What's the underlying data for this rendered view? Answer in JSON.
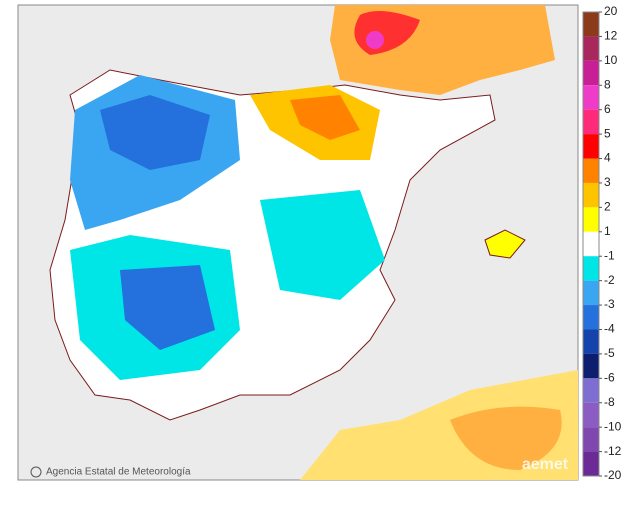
{
  "legend": {
    "ticks": [
      20,
      12,
      10,
      8,
      6,
      5,
      4,
      3,
      2,
      1,
      -1,
      -2,
      -3,
      -4,
      -5,
      -6,
      -8,
      -10,
      -12,
      -20
    ],
    "colors": [
      "#8b3a1a",
      "#a8285e",
      "#c81e96",
      "#ee3cc8",
      "#ff2a7a",
      "#ff0000",
      "#ff8200",
      "#ffc400",
      "#ffff00",
      "#ffffff",
      "#00e6e6",
      "#3aa6f2",
      "#2470dc",
      "#1443ac",
      "#0e1e6e",
      "#7f6ed2",
      "#8a5cc4",
      "#8048ae",
      "#6c2a96"
    ]
  },
  "credit": "Agencia Estatal de Meteorología",
  "watermark": "aemet"
}
